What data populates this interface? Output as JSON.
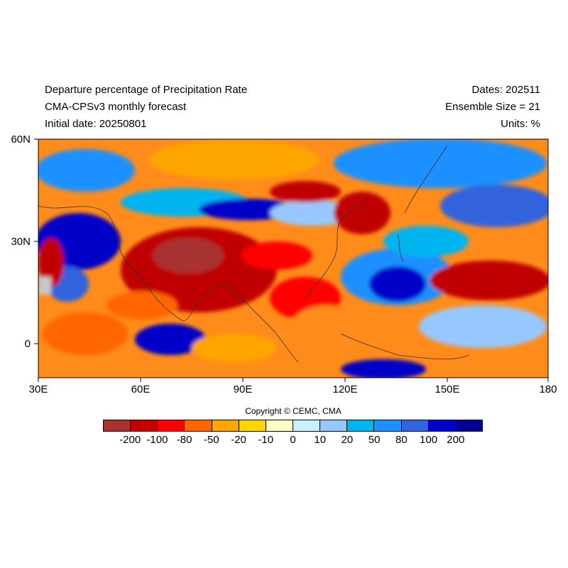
{
  "header": {
    "title": "Departure percentage of Precipitation Rate",
    "subtitle": "CMA-CPSv3 monthly forecast",
    "initial_date": "Initial date: 20250801",
    "dates": "Dates: 202511",
    "ensemble": "Ensemble Size = 21",
    "units": "Units: %"
  },
  "map": {
    "lat_labels": [
      "60N",
      "30N",
      "0"
    ],
    "lon_labels": [
      "30E",
      "60E",
      "90E",
      "120E",
      "150E",
      "180"
    ],
    "regions": [
      {
        "name": "india-arabia-dry",
        "color": "#c00000"
      },
      {
        "name": "tibet-dry",
        "color": "#a83232"
      },
      {
        "name": "west-pacific-dry",
        "color": "#c00000"
      },
      {
        "name": "east-africa-wet",
        "color": "#0000c8"
      },
      {
        "name": "philippine-sea-wet",
        "color": "#0000c8"
      }
    ]
  },
  "copyright": "Copyright © CEMC, CMA",
  "legend": {
    "colors": [
      "#a83232",
      "#c00000",
      "#ff0000",
      "#ff6600",
      "#ffa500",
      "#ffd700",
      "#ffffc8",
      "#c8f0ff",
      "#96c8ff",
      "#00b4f0",
      "#1e90ff",
      "#3264dc",
      "#0000c8",
      "#000090"
    ],
    "labels": [
      "-200",
      "-100",
      "-80",
      "-50",
      "-20",
      "-10",
      "0",
      "10",
      "20",
      "50",
      "80",
      "100",
      "200"
    ]
  }
}
